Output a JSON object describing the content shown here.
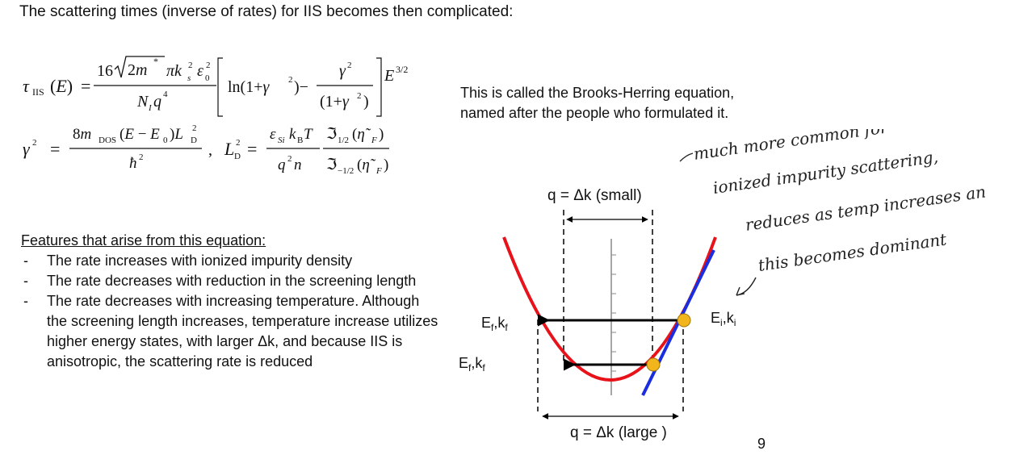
{
  "slide": {
    "title": "The scattering times (inverse of rates) for IIS becomes then complicated:",
    "side_text": "This is called the Brooks-Herring equation, named after the people who formulated it.",
    "features_heading": "Features that arise from this equation:",
    "features": [
      "The rate increases with ionized impurity density",
      "The rate decreases with reduction in the screening length",
      "The rate decreases with increasing temperature. Although the screening length increases, temperature increase utilizes higher energy states, with larger Δk, and because IIS is anisotropic, the scattering rate is reduced"
    ],
    "page_number": "9"
  },
  "diagram": {
    "label_small": "q = Δk (small)",
    "label_large": "q = Δk (large )",
    "label_final_upper": "Eƒ,kƒ",
    "label_final_lower": "Eƒ,kƒ",
    "label_initial": "Ei,ki"
  },
  "handwritten_note": [
    "much more common for",
    "ionized impurity scattering,",
    "reduces as temp increases and",
    "this becomes dominant"
  ],
  "colors": {
    "parabola": "#e8121a",
    "tangent": "#1a2ee0",
    "point": "#f2b51c",
    "arrow": "#000000"
  }
}
